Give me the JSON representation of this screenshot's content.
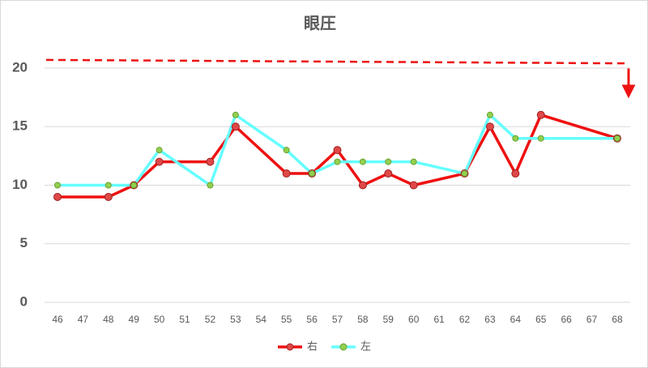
{
  "chart_data": {
    "type": "line",
    "title": "眼圧",
    "x": [
      46,
      48,
      49,
      50,
      52,
      53,
      55,
      56,
      57,
      58,
      59,
      60,
      62,
      63,
      64,
      65,
      68
    ],
    "xticks": [
      46,
      47,
      48,
      49,
      50,
      51,
      52,
      53,
      54,
      55,
      56,
      57,
      58,
      59,
      60,
      61,
      62,
      63,
      64,
      65,
      66,
      67,
      68
    ],
    "xlim": [
      46,
      68
    ],
    "ylim": [
      0,
      20
    ],
    "yticks": [
      0,
      5,
      10,
      15,
      20
    ],
    "grid": true,
    "series": [
      {
        "name": "右",
        "color": "#ee1111",
        "marker_color": "#e04848",
        "values": [
          9,
          9,
          10,
          12,
          12,
          15,
          11,
          11,
          13,
          10,
          11,
          10,
          11,
          15,
          11,
          16,
          14
        ]
      },
      {
        "name": "左",
        "color": "#66ffff",
        "marker_color": "#92d050",
        "values": [
          10,
          10,
          10,
          13,
          10,
          16,
          13,
          11,
          12,
          12,
          12,
          12,
          11,
          16,
          14,
          14,
          14
        ]
      }
    ],
    "reference_line": {
      "values": [
        20.7,
        20.4
      ],
      "color": "#ee1111"
    }
  }
}
